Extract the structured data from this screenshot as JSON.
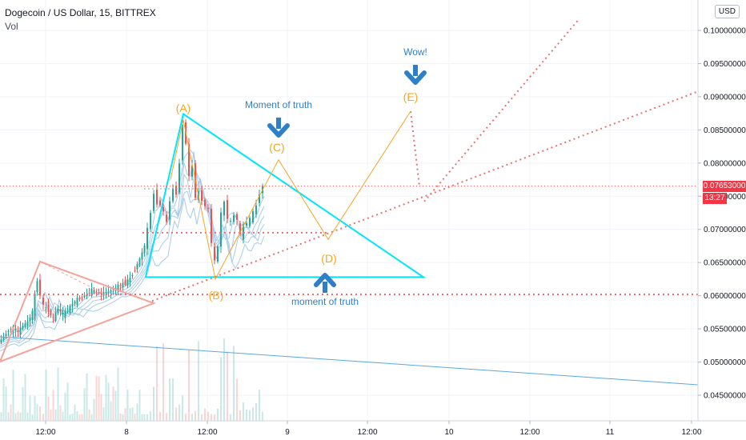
{
  "header": {
    "symbol_line": "Dogecoin / US Dollar, 15, BITTREX",
    "volume_label": "Vol"
  },
  "currency_button": "USD",
  "last_price_tag": "0.07653000",
  "countdown_tag": "13:27",
  "colors": {
    "up": "#26a69a",
    "down": "#ef5350",
    "pattern": "#00e5ff",
    "wave": "#f5a623",
    "support": "#e57373",
    "annotation_blue": "#2e7fc9",
    "trendline": "#5aa8e0"
  },
  "chart_data": {
    "type": "candlestick",
    "y_axis": {
      "ylim": [
        0.0425,
        0.1045
      ],
      "ticks": [
        "0.10000000",
        "0.09500000",
        "0.09000000",
        "0.08500000",
        "0.08000000",
        "0.07500000",
        "0.07000000",
        "0.06500000",
        "0.06000000",
        "0.05500000",
        "0.05000000",
        "0.04500000"
      ]
    },
    "x_axis": {
      "ticks": [
        "12:00",
        "8",
        "12:00",
        "9",
        "12:00",
        "10",
        "12:00",
        "11",
        "12:00"
      ]
    },
    "last_price": 0.07653,
    "price_series": [
      [
        0,
        0.053
      ],
      [
        6,
        0.0538
      ],
      [
        12,
        0.0548
      ],
      [
        18,
        0.0552
      ],
      [
        24,
        0.0545
      ],
      [
        30,
        0.0555
      ],
      [
        36,
        0.056
      ],
      [
        42,
        0.0575
      ],
      [
        48,
        0.0625
      ],
      [
        52,
        0.06
      ],
      [
        56,
        0.0585
      ],
      [
        62,
        0.0578
      ],
      [
        68,
        0.0565
      ],
      [
        74,
        0.058
      ],
      [
        80,
        0.0572
      ],
      [
        86,
        0.0578
      ],
      [
        92,
        0.0588
      ],
      [
        98,
        0.0594
      ],
      [
        104,
        0.0598
      ],
      [
        110,
        0.0602
      ],
      [
        116,
        0.0608
      ],
      [
        122,
        0.0605
      ],
      [
        128,
        0.0603
      ],
      [
        134,
        0.0605
      ],
      [
        140,
        0.0608
      ],
      [
        146,
        0.0612
      ],
      [
        152,
        0.0616
      ],
      [
        158,
        0.0619
      ],
      [
        164,
        0.0626
      ],
      [
        170,
        0.064
      ],
      [
        176,
        0.0655
      ],
      [
        182,
        0.0675
      ],
      [
        186,
        0.07
      ],
      [
        190,
        0.0725
      ],
      [
        194,
        0.0755
      ],
      [
        198,
        0.074
      ],
      [
        202,
        0.0738
      ],
      [
        206,
        0.0725
      ],
      [
        210,
        0.071
      ],
      [
        214,
        0.0745
      ],
      [
        218,
        0.076
      ],
      [
        222,
        0.0755
      ],
      [
        226,
        0.08
      ],
      [
        230,
        0.086
      ],
      [
        234,
        0.083
      ],
      [
        238,
        0.078
      ],
      [
        242,
        0.0795
      ],
      [
        246,
        0.075
      ],
      [
        250,
        0.0755
      ],
      [
        254,
        0.0745
      ],
      [
        258,
        0.0735
      ],
      [
        262,
        0.073
      ],
      [
        266,
        0.068
      ],
      [
        270,
        0.065
      ],
      [
        274,
        0.0675
      ],
      [
        278,
        0.0725
      ],
      [
        282,
        0.074
      ],
      [
        286,
        0.0718
      ],
      [
        290,
        0.071
      ],
      [
        294,
        0.0722
      ],
      [
        298,
        0.0715
      ],
      [
        302,
        0.069
      ],
      [
        306,
        0.0705
      ],
      [
        310,
        0.071
      ],
      [
        314,
        0.0715
      ],
      [
        318,
        0.0725
      ],
      [
        322,
        0.0735
      ],
      [
        326,
        0.0755
      ],
      [
        330,
        0.0765
      ]
    ],
    "wave_points": [
      {
        "label": "(A)",
        "x": 229,
        "y": 0.0865
      },
      {
        "label": "(B)",
        "x": 269,
        "y": 0.0625
      },
      {
        "label": "(C)",
        "x": 348,
        "y": 0.0805
      },
      {
        "label": "(D)",
        "x": 410,
        "y": 0.0685
      },
      {
        "label": "(E)",
        "x": 513,
        "y": 0.0878
      }
    ],
    "annotations": [
      {
        "text": "Moment of truth",
        "x": 348,
        "y": 0.0888
      },
      {
        "text": "moment of truth",
        "x": 406,
        "y": 0.0599
      },
      {
        "text": "Wow!",
        "x": 519,
        "y": 0.0985
      }
    ],
    "arrows": [
      {
        "direction": "down",
        "x": 348,
        "y": 0.0845
      },
      {
        "direction": "up",
        "x": 406,
        "y": 0.0638
      },
      {
        "direction": "down",
        "x": 519,
        "y": 0.0945
      }
    ],
    "triangle": [
      [
        229,
        0.0874
      ],
      [
        529,
        0.0628
      ],
      [
        182,
        0.0628
      ]
    ],
    "support_line_y": 0.0602,
    "horizontal_dotted_y": 0.0695
  }
}
